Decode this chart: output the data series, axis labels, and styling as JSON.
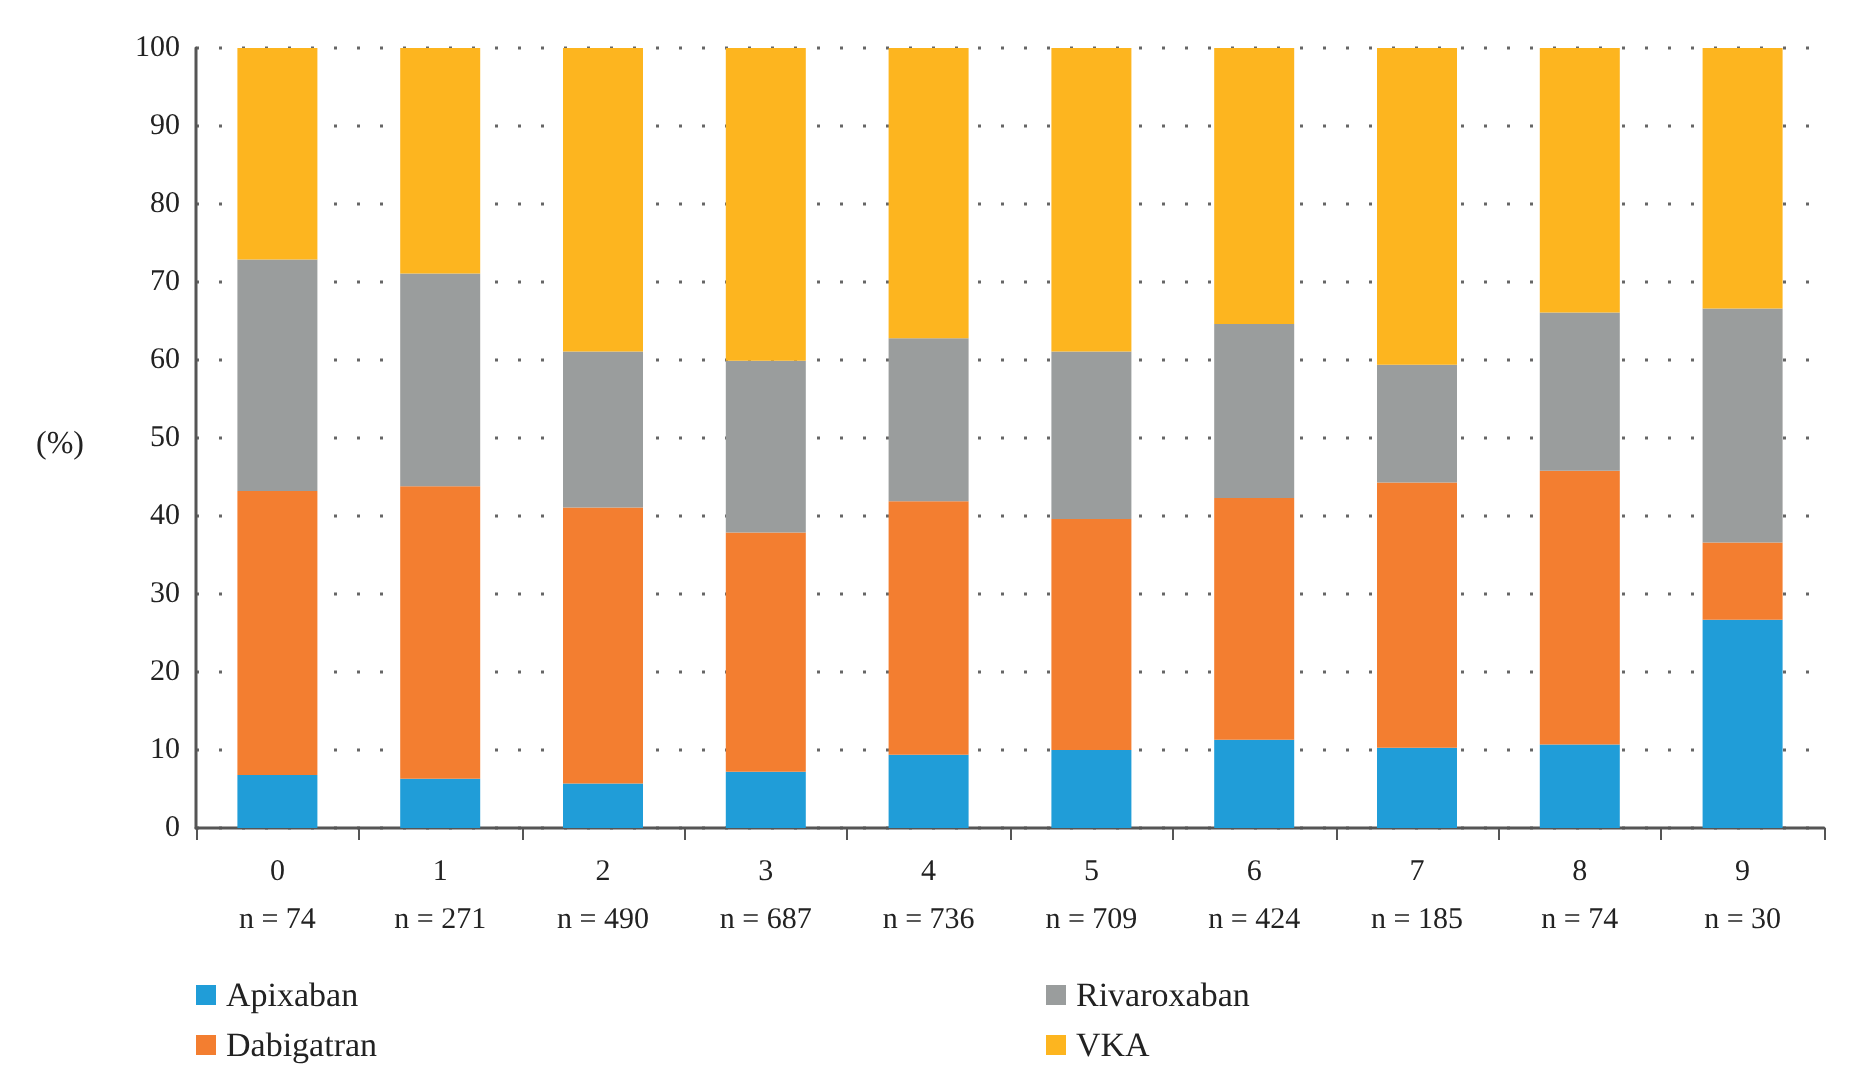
{
  "chart_data": {
    "type": "bar",
    "stacked": true,
    "ylabel": "(%)",
    "categories": [
      "0\nn = 74",
      "1\nn = 271",
      "2\nn = 490",
      "3\nn = 687",
      "4\nn = 736",
      "5\nn = 709",
      "6\nn = 424",
      "7\nn = 185",
      "8\nn = 74",
      "9\nn = 30"
    ],
    "series": [
      {
        "name": "Apixaban",
        "color": "#209dd8",
        "values": [
          6.8,
          6.3,
          5.7,
          7.2,
          9.4,
          10.0,
          11.3,
          10.3,
          10.7,
          26.7
        ]
      },
      {
        "name": "Dabigatran",
        "color": "#f37e30",
        "values": [
          36.4,
          37.5,
          35.4,
          30.7,
          32.5,
          29.6,
          31.0,
          34.0,
          35.1,
          9.9
        ]
      },
      {
        "name": "Rivaroxaban",
        "color": "#9a9d9d",
        "values": [
          29.7,
          27.3,
          20.0,
          22.0,
          20.9,
          21.5,
          22.3,
          15.1,
          20.3,
          30.0
        ]
      },
      {
        "name": "VKA",
        "color": "#fdb51f",
        "values": [
          27.1,
          28.9,
          38.9,
          40.1,
          37.2,
          38.9,
          35.4,
          40.6,
          33.9,
          33.4
        ]
      }
    ],
    "ylim": [
      0,
      100
    ],
    "yticks": [
      0,
      10,
      20,
      30,
      40,
      50,
      60,
      70,
      80,
      90,
      100
    ],
    "grid": "y",
    "legend": "bottom"
  }
}
